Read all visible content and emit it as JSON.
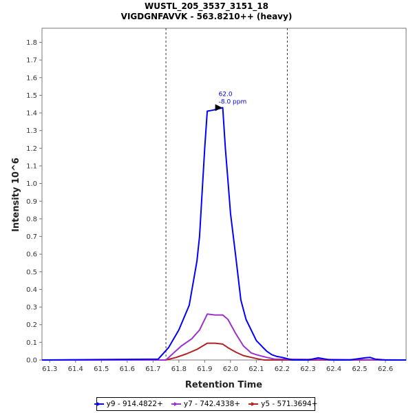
{
  "chart_data": {
    "type": "line",
    "title": "WUSTL_205_3537_3151_18",
    "subtitle": "VIGDGNFAVVK - 563.8210++ (heavy)",
    "xlabel": "Retention Time",
    "ylabel": "Intensity 10^6",
    "xlim": [
      61.27,
      62.68
    ],
    "ylim": [
      0,
      1.88
    ],
    "xticks": [
      "61.3",
      "61.4",
      "61.5",
      "61.6",
      "61.7",
      "61.8",
      "61.9",
      "62.0",
      "62.1",
      "62.2",
      "62.3",
      "62.4",
      "62.5",
      "62.6"
    ],
    "yticks": [
      "0.0",
      "0.1",
      "0.2",
      "0.3",
      "0.4",
      "0.5",
      "0.6",
      "0.7",
      "0.8",
      "0.9",
      "1.0",
      "1.1",
      "1.2",
      "1.3",
      "1.4",
      "1.5",
      "1.6",
      "1.7",
      "1.8"
    ],
    "grid": false,
    "legend_position": "bottom",
    "boundaries": [
      61.75,
      62.22
    ],
    "annotation": {
      "x": 61.97,
      "y": 1.43,
      "line1": "62.0",
      "line2": "-8.0 ppm"
    },
    "series": [
      {
        "name": "y9 - 914.4822+",
        "color": "#0000ff",
        "x": [
          61.27,
          61.72,
          61.76,
          61.8,
          61.84,
          61.87,
          61.88,
          61.9,
          61.91,
          61.93,
          61.945,
          61.97,
          61.98,
          61.99,
          62.0,
          62.02,
          62.04,
          62.06,
          62.1,
          62.14,
          62.16,
          62.18,
          62.2,
          62.24,
          62.3,
          62.34,
          62.38,
          62.4,
          62.46,
          62.52,
          62.54,
          62.56,
          62.6,
          62.68
        ],
        "y": [
          0.0,
          0.005,
          0.07,
          0.17,
          0.31,
          0.56,
          0.7,
          1.2,
          1.41,
          1.415,
          1.42,
          1.43,
          1.2,
          1.02,
          0.83,
          0.59,
          0.34,
          0.23,
          0.11,
          0.05,
          0.03,
          0.02,
          0.015,
          0.0,
          0.0,
          0.012,
          0.002,
          0.0,
          0.0,
          0.012,
          0.015,
          0.005,
          0.0,
          0.0
        ]
      },
      {
        "name": "y7 - 742.4338+",
        "color": "#9932cc",
        "x": [
          61.27,
          61.75,
          61.78,
          61.81,
          61.85,
          61.88,
          61.91,
          61.94,
          61.97,
          61.99,
          62.02,
          62.05,
          62.08,
          62.1,
          62.14,
          62.17,
          62.68
        ],
        "y": [
          0.0,
          0.0,
          0.04,
          0.08,
          0.12,
          0.17,
          0.26,
          0.255,
          0.255,
          0.23,
          0.15,
          0.08,
          0.04,
          0.03,
          0.015,
          0.005,
          0.0
        ]
      },
      {
        "name": "y5 - 571.3694+",
        "color": "#b22222",
        "x": [
          61.27,
          61.75,
          61.79,
          61.83,
          61.87,
          61.91,
          61.94,
          61.97,
          61.99,
          62.02,
          62.05,
          62.08,
          62.11,
          62.13,
          62.68
        ],
        "y": [
          0.0,
          0.0,
          0.015,
          0.035,
          0.06,
          0.095,
          0.095,
          0.09,
          0.07,
          0.045,
          0.025,
          0.015,
          0.005,
          0.0,
          0.0
        ]
      }
    ]
  }
}
